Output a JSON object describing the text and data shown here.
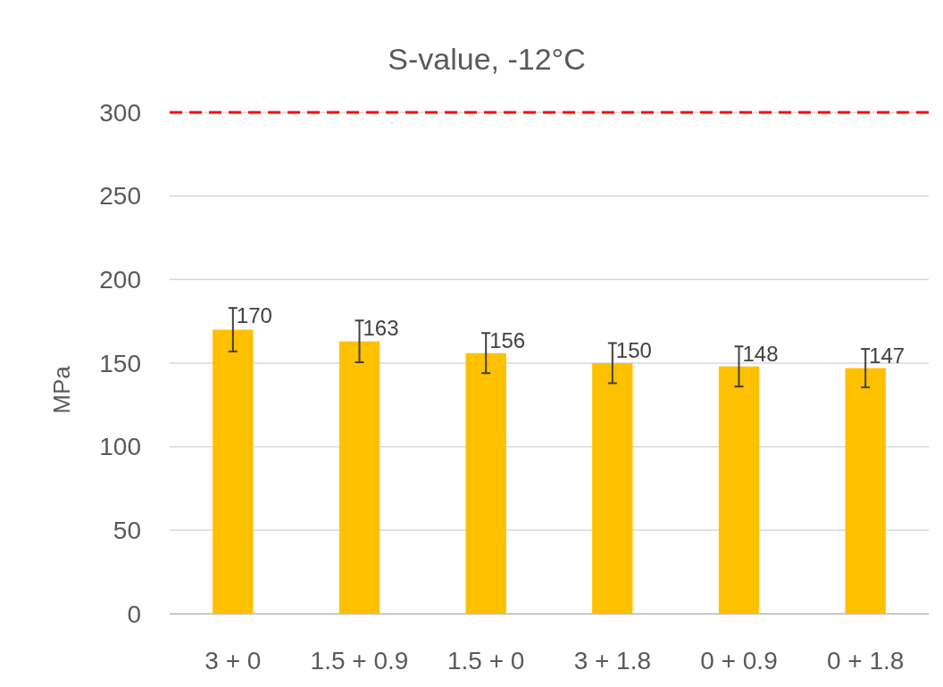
{
  "chart_data": {
    "type": "bar",
    "title": "S-value, -12°C",
    "ylabel": "MPa",
    "categories": [
      "3 + 0",
      "1.5 + 0.9",
      "1.5 + 0",
      "3 + 1.8",
      "0 + 0.9",
      "0 + 1.8"
    ],
    "values": [
      170,
      163,
      156,
      150,
      148,
      147
    ],
    "errors": [
      13,
      12.5,
      12,
      12,
      12,
      11.5
    ],
    "color": "#ffc000",
    "ylim": [
      0,
      300
    ],
    "yticks": [
      0,
      50,
      100,
      150,
      200,
      250,
      300
    ],
    "grid": "y",
    "data_labels": true,
    "ref_lines": [
      {
        "axis": "y",
        "value": 300,
        "color": "#ff0000",
        "line_style": "dashed"
      }
    ]
  }
}
